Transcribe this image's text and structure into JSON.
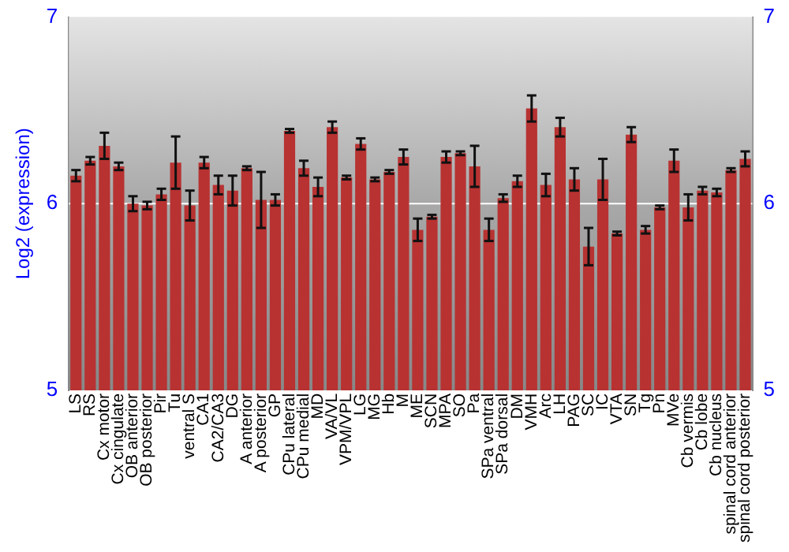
{
  "chart_data": {
    "type": "bar",
    "ylabel": "Log2 (expression)",
    "categories": [
      "LS",
      "RS",
      "Cx motor",
      "Cx cingulate",
      "OB anterior",
      "OB posterior",
      "Pir",
      "Tu",
      "ventral S",
      "CA1",
      "CA2/CA3",
      "DG",
      "A anterior",
      "A posterior",
      "GP",
      "CPu lateral",
      "CPu medial",
      "MD",
      "VA/VL",
      "VPM/VPL",
      "LG",
      "MG",
      "Hb",
      "M",
      "ME",
      "SCN",
      "MPA",
      "SO",
      "Pa",
      "SPa ventral",
      "SPa dorsal",
      "DM",
      "VMH",
      "Arc",
      "LH",
      "PAG",
      "SC",
      "IC",
      "VTA",
      "SN",
      "Tg",
      "Pn",
      "MVe",
      "Cb vermis",
      "Cb lobe",
      "Cb nucleus",
      "spinal cord anterior",
      "spinal cord posterior"
    ],
    "values": [
      6.15,
      6.23,
      6.31,
      6.2,
      6.0,
      5.99,
      6.05,
      6.22,
      5.99,
      6.22,
      6.1,
      6.07,
      6.19,
      6.02,
      6.02,
      6.39,
      6.19,
      6.09,
      6.41,
      6.14,
      6.32,
      6.13,
      6.17,
      6.25,
      5.86,
      5.93,
      6.25,
      6.27,
      6.2,
      5.86,
      6.03,
      6.12,
      6.51,
      6.1,
      6.41,
      6.13,
      5.77,
      6.13,
      5.84,
      6.37,
      5.86,
      5.98,
      6.23,
      5.98,
      6.07,
      6.06,
      6.18,
      6.24
    ],
    "errors": [
      0.03,
      0.02,
      0.07,
      0.02,
      0.04,
      0.02,
      0.03,
      0.14,
      0.08,
      0.03,
      0.05,
      0.08,
      0.01,
      0.15,
      0.03,
      0.01,
      0.04,
      0.05,
      0.03,
      0.01,
      0.03,
      0.01,
      0.01,
      0.04,
      0.06,
      0.01,
      0.03,
      0.01,
      0.11,
      0.06,
      0.02,
      0.03,
      0.07,
      0.06,
      0.05,
      0.06,
      0.1,
      0.11,
      0.01,
      0.04,
      0.02,
      0.01,
      0.06,
      0.07,
      0.02,
      0.02,
      0.01,
      0.04
    ],
    "color": "#b83232",
    "ylim": [
      5,
      7
    ],
    "yticks": [
      5,
      6,
      7
    ],
    "y2lim": [
      5,
      7
    ],
    "y2ticks": [
      5,
      6,
      7
    ],
    "grid": "y",
    "legend": false
  }
}
